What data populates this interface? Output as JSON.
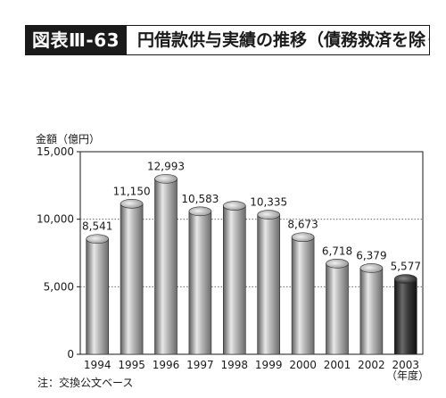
{
  "figure": {
    "label": "図表Ⅲ-63",
    "title": "円借款供与実績の推移（債務救済を除く）",
    "footnote": "注：交換公文ベース"
  },
  "chart_data": {
    "type": "bar",
    "ylabel": "金額（億円）",
    "xlabel": "（年度）",
    "ylim": [
      0,
      15000
    ],
    "yticks": [
      "0",
      "5,000",
      "10,000",
      "15,000"
    ],
    "ytick_values": [
      0,
      5000,
      10000,
      15000
    ],
    "grid": "dotted horizontal at 5,000 and 10,000",
    "categories": [
      "1994",
      "1995",
      "1996",
      "1997",
      "1998",
      "1999",
      "2000",
      "2001",
      "2002",
      "2003"
    ],
    "values": [
      8541,
      11150,
      12993,
      10583,
      11000,
      10335,
      8673,
      6718,
      6379,
      5577
    ],
    "value_labels": [
      "8,541",
      "11,150",
      "12,993",
      "10,583",
      "",
      "10,335",
      "8,673",
      "6,718",
      "6,379",
      "5,577"
    ],
    "highlight_index": 9,
    "colors": {
      "bar": "#9a9a9a",
      "bar_highlight": "#3a3a3a",
      "axis": "#1a1a1a",
      "grid": "#555555"
    }
  }
}
